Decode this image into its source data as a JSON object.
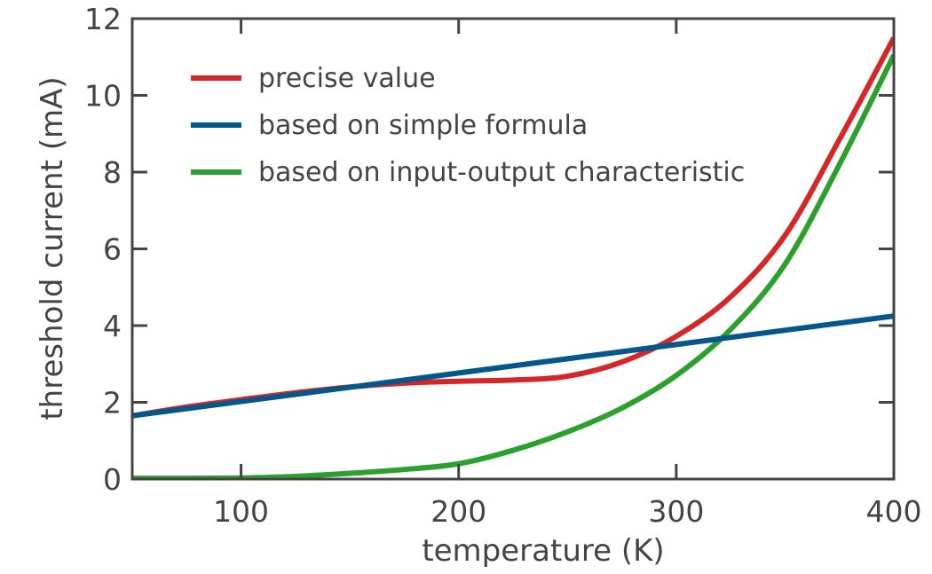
{
  "chart_data": {
    "type": "line",
    "title": "",
    "xlabel": "temperature (K)",
    "ylabel": "threshold current (mA)",
    "xlim": [
      50,
      400
    ],
    "ylim": [
      0,
      12
    ],
    "xticks": [
      100,
      200,
      300,
      400
    ],
    "yticks": [
      0,
      2,
      4,
      6,
      8,
      10,
      12
    ],
    "grid": false,
    "legend_placement": "top-left",
    "series": [
      {
        "name": "precise value",
        "color": "#d62728",
        "x": [
          50,
          75,
          100,
          125,
          150,
          175,
          200,
          225,
          250,
          275,
          300,
          325,
          350,
          375,
          400
        ],
        "y": [
          1.65,
          1.88,
          2.07,
          2.25,
          2.4,
          2.5,
          2.55,
          2.58,
          2.68,
          3.05,
          3.72,
          4.75,
          6.35,
          8.85,
          11.5
        ]
      },
      {
        "name": "based on simple formula",
        "color": "#03578a",
        "x": [
          50,
          400
        ],
        "y": [
          1.65,
          4.25
        ]
      },
      {
        "name": "based on input-output characteristic",
        "color": "#2ca02c",
        "x": [
          50,
          75,
          100,
          125,
          150,
          175,
          200,
          225,
          250,
          275,
          300,
          325,
          350,
          375,
          400
        ],
        "y": [
          0.02,
          0.02,
          0.03,
          0.07,
          0.15,
          0.25,
          0.4,
          0.75,
          1.23,
          1.85,
          2.7,
          3.9,
          5.6,
          8.2,
          11.05
        ]
      }
    ]
  }
}
